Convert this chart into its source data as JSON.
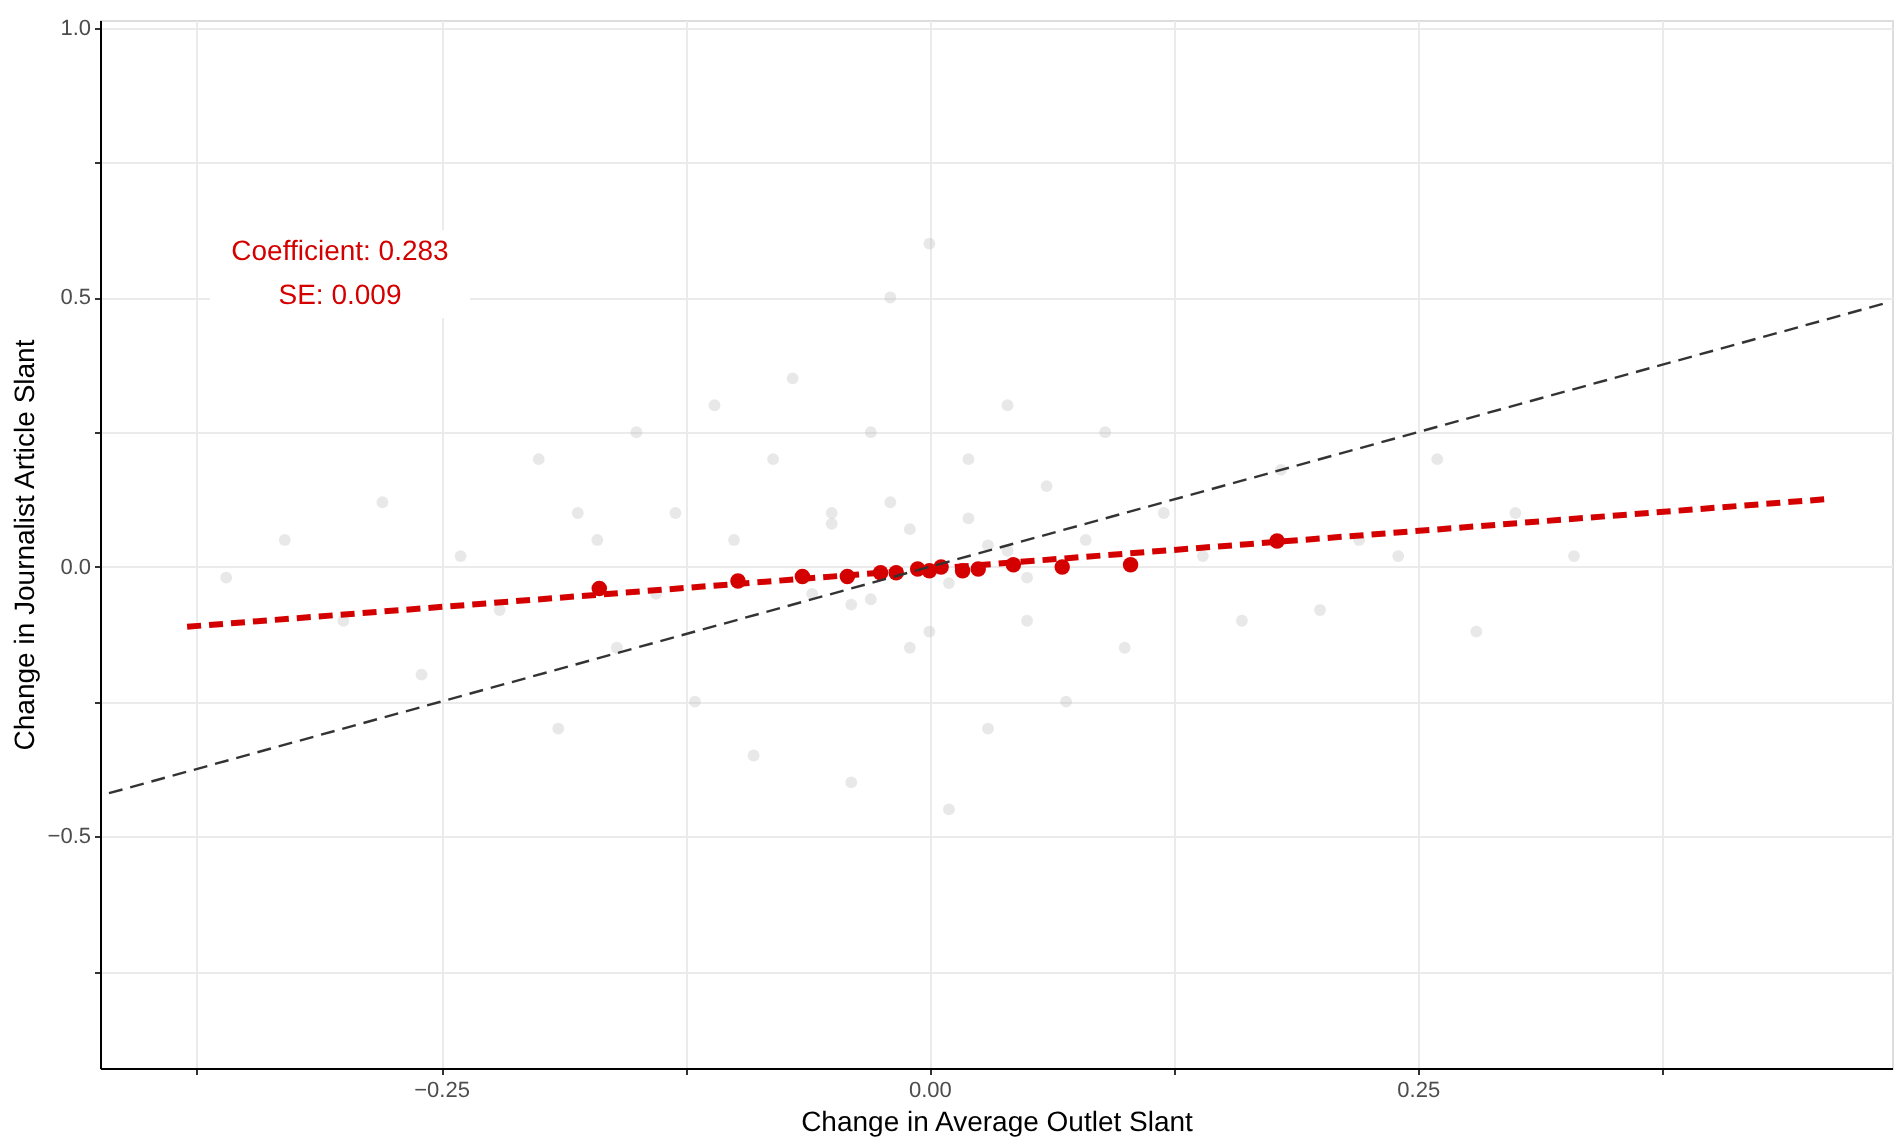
{
  "chart_data": {
    "type": "scatter",
    "xlabel": "Change in Average Outlet Slant",
    "ylabel": "Change in Journalist Article Slant",
    "xlim": [
      -0.4246,
      0.4928
    ],
    "ylim": [
      -0.93,
      1.015
    ],
    "xticks": [
      {
        "value": -0.375,
        "label": null
      },
      {
        "value": -0.25,
        "label": "−0.25"
      },
      {
        "value": -0.125,
        "label": null
      },
      {
        "value": 0,
        "label": "0.00"
      },
      {
        "value": 0.125,
        "label": null
      },
      {
        "value": 0.25,
        "label": "0.25"
      },
      {
        "value": 0.375,
        "label": null
      }
    ],
    "yticks": [
      {
        "value": -0.75,
        "label": null
      },
      {
        "value": -0.5,
        "label": "−0.5"
      },
      {
        "value": -0.25,
        "label": null
      },
      {
        "value": 0,
        "label": "0.0"
      },
      {
        "value": 0.25,
        "label": null
      },
      {
        "value": 0.5,
        "label": "0.5"
      },
      {
        "value": 0.75,
        "label": null
      },
      {
        "value": 1.0,
        "label": "1.0"
      }
    ],
    "grid": true,
    "annotations": [
      "Coefficient: 0.283",
      "SE: 0.009"
    ],
    "series": [
      {
        "marker": "circle",
        "color": "#bebebe",
        "x": [
          -0.36,
          -0.33,
          -0.3,
          -0.28,
          -0.26,
          -0.24,
          -0.22,
          -0.2,
          -0.19,
          -0.18,
          -0.17,
          -0.16,
          -0.15,
          -0.14,
          -0.13,
          -0.12,
          -0.11,
          -0.1,
          -0.09,
          -0.08,
          -0.07,
          -0.06,
          -0.05,
          -0.04,
          -0.03,
          -0.02,
          -0.01,
          0,
          0.01,
          0.02,
          0.03,
          0.04,
          0.05,
          0.06,
          0.07,
          0.08,
          0.09,
          0.1,
          0.12,
          0.14,
          0.16,
          0.18,
          0.2,
          0.22,
          0.24,
          0.26,
          0.28,
          0.3,
          0.33,
          -0.05,
          -0.03,
          -0.01,
          0.01,
          0.03,
          0.05,
          -0.02,
          0,
          0.02,
          -0.04,
          0.04
        ],
        "values": [
          -0.02,
          0.05,
          -0.1,
          0.12,
          -0.2,
          0.02,
          -0.08,
          0.2,
          -0.3,
          0.1,
          0.05,
          -0.15,
          0.25,
          -0.05,
          0.1,
          -0.25,
          0.3,
          0.05,
          -0.35,
          0.2,
          0.35,
          -0.05,
          0.1,
          -0.4,
          0.25,
          0.5,
          -0.15,
          0.6,
          -0.45,
          0.2,
          -0.3,
          0.3,
          -0.1,
          0.15,
          -0.25,
          0.05,
          0.25,
          -0.15,
          0.1,
          0.02,
          -0.1,
          0.18,
          -0.08,
          0.05,
          0.02,
          0.2,
          -0.12,
          0.1,
          0.02,
          0.08,
          -0.06,
          0.07,
          -0.03,
          0.04,
          -0.02,
          0.12,
          -0.12,
          0.09,
          -0.07,
          0.03
        ]
      },
      {
        "marker": "circle",
        "color": "#d40000",
        "x": [
          -0.169,
          -0.098,
          -0.065,
          -0.042,
          -0.025,
          -0.017,
          -0.006,
          0.0,
          0.006,
          0.017,
          0.025,
          0.043,
          0.068,
          0.103,
          0.178
        ],
        "values": [
          -0.04,
          -0.026,
          -0.018,
          -0.018,
          -0.011,
          -0.011,
          -0.004,
          -0.007,
          0.0,
          -0.007,
          -0.004,
          0.004,
          0.0,
          0.004,
          0.048
        ]
      },
      {
        "type": "line",
        "line_style": "dashed",
        "color": "#d40000",
        "x": [
          -0.38,
          0.46
        ],
        "values": [
          -0.111,
          0.126
        ]
      },
      {
        "type": "line",
        "line_style": "dashed",
        "color": "#333333",
        "x": [
          -0.42,
          0.49
        ],
        "values": [
          -0.42,
          0.49
        ]
      }
    ]
  }
}
